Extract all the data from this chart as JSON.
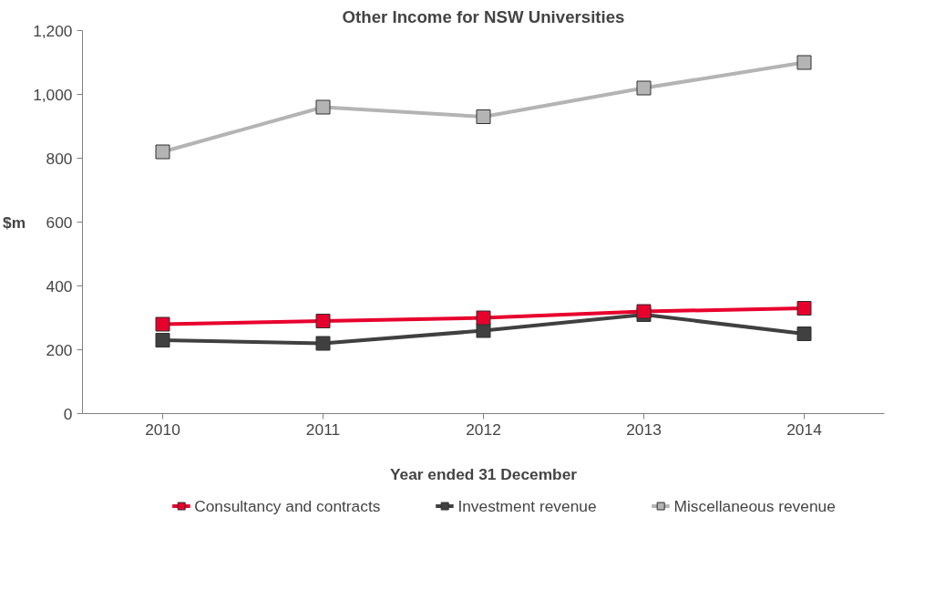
{
  "chart_data": {
    "type": "line",
    "title": "Other Income for NSW Universities",
    "xlabel": "Year ended 31 December",
    "ylabel": "$m",
    "categories": [
      "2010",
      "2011",
      "2012",
      "2013",
      "2014"
    ],
    "series": [
      {
        "name": "Consultancy and contracts",
        "color": "#e8002d",
        "values": [
          280,
          290,
          300,
          320,
          330
        ]
      },
      {
        "name": "Investment revenue",
        "color": "#404040",
        "values": [
          230,
          220,
          260,
          310,
          250
        ]
      },
      {
        "name": "Miscellaneous revenue",
        "color": "#b4b4b4",
        "values": [
          820,
          960,
          930,
          1020,
          1100
        ]
      }
    ],
    "ylim": [
      0,
      1200
    ],
    "yticks": [
      0,
      {
        "value": 200,
        "label": "200"
      },
      400,
      600,
      800,
      {
        "value": 1000,
        "label": "1,000"
      },
      {
        "value": 1200,
        "label": "1,200"
      }
    ],
    "grid": false,
    "legend": "bottom",
    "marker": "square",
    "line_style": "solid"
  }
}
